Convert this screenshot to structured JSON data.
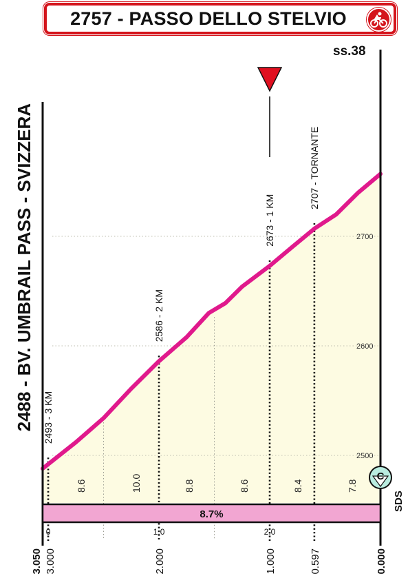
{
  "title": "2757 - PASSO DELLO STELVIO",
  "road": "ss.38",
  "start_label": "2488 - BV. UMBRAIL PASS - SVIZZERA",
  "avg_gradient": "8.7%",
  "gpm_marker": "C",
  "gpm_side_label": "SDS",
  "colors": {
    "profile": "#e0198c",
    "fill": "#fdfbe2",
    "gradient_bar": "#f2a6d2",
    "title_border": "#d4141c",
    "gpm_circle": "#b9ece0",
    "flag": "#e01020"
  },
  "chart_data": {
    "type": "area",
    "title": "2757 - PASSO DELLO STELVIO",
    "x_unit": "km to go",
    "y_unit": "m",
    "xlim": [
      3.05,
      0
    ],
    "ylim": [
      2480,
      2790
    ],
    "profile": [
      {
        "km": 3.05,
        "alt": 2488
      },
      {
        "km": 2.75,
        "alt": 2512
      },
      {
        "km": 2.5,
        "alt": 2534
      },
      {
        "km": 2.25,
        "alt": 2561
      },
      {
        "km": 2.0,
        "alt": 2586
      },
      {
        "km": 1.75,
        "alt": 2608
      },
      {
        "km": 1.55,
        "alt": 2630
      },
      {
        "km": 1.4,
        "alt": 2639
      },
      {
        "km": 1.25,
        "alt": 2654
      },
      {
        "km": 1.0,
        "alt": 2673
      },
      {
        "km": 0.8,
        "alt": 2690
      },
      {
        "km": 0.597,
        "alt": 2707
      },
      {
        "km": 0.4,
        "alt": 2720
      },
      {
        "km": 0.2,
        "alt": 2740
      },
      {
        "km": 0.0,
        "alt": 2757
      }
    ],
    "y_ticks": [
      "2500",
      "2600",
      "2700"
    ],
    "km_ticks": [
      {
        "label": "0",
        "km": 3.0
      },
      {
        "label": "1.0",
        "km": 2.0
      },
      {
        "label": "2.0",
        "km": 1.0
      }
    ],
    "distance_labels": [
      "3.050",
      "3.000",
      "2.000",
      "1.000",
      "0.597",
      "0.000"
    ],
    "segment_gradients": [
      "8.6",
      "10.0",
      "8.8",
      "8.6",
      "8.4",
      "7.8"
    ],
    "waypoints": [
      {
        "label": "2493 - 3 KM",
        "km": 3.0,
        "alt": 2493
      },
      {
        "label": "2586 - 2 KM",
        "km": 2.0,
        "alt": 2586
      },
      {
        "label": "2673 - 1 KM",
        "km": 1.0,
        "alt": 2673
      },
      {
        "label": "2707 - TORNANTE",
        "km": 0.597,
        "alt": 2707
      }
    ]
  }
}
